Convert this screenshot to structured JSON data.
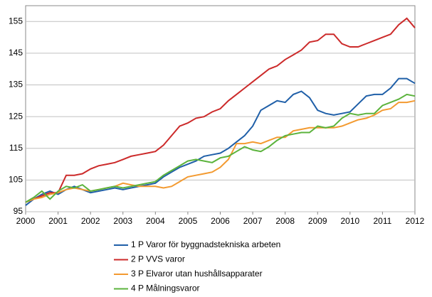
{
  "chart_data": {
    "type": "line",
    "x": [
      2000,
      2000.25,
      2000.5,
      2000.75,
      2001,
      2001.25,
      2001.5,
      2001.75,
      2002,
      2002.25,
      2002.5,
      2002.75,
      2003,
      2003.25,
      2003.5,
      2003.75,
      2004,
      2004.25,
      2004.5,
      2004.75,
      2005,
      2005.25,
      2005.5,
      2005.75,
      2006,
      2006.25,
      2006.5,
      2006.75,
      2007,
      2007.25,
      2007.5,
      2007.75,
      2008,
      2008.25,
      2008.5,
      2008.75,
      2009,
      2009.25,
      2009.5,
      2009.75,
      2010,
      2010.25,
      2010.5,
      2010.75,
      2011,
      2011.25,
      2011.5,
      2011.75,
      2012
    ],
    "series": [
      {
        "name": "1 P Varor för byggnadstekniska arbeten",
        "color": "#1f5fa8",
        "values": [
          97,
          99,
          100.5,
          101.5,
          100.5,
          102,
          103,
          102,
          101,
          101.5,
          102,
          102.5,
          102,
          102.5,
          103,
          103.5,
          104,
          106,
          107.5,
          109,
          110,
          111,
          112.5,
          113,
          113.5,
          115,
          117,
          119,
          122,
          127,
          128.5,
          130,
          129.5,
          132,
          133,
          131,
          127,
          126,
          125.5,
          126,
          126.5,
          129,
          131.5,
          132,
          132,
          134,
          137,
          137,
          135.5
        ]
      },
      {
        "name": "2 P VVS varor",
        "color": "#cc2a2a",
        "values": [
          98,
          99,
          100,
          101,
          101,
          106.5,
          106.5,
          107,
          108.5,
          109.5,
          110,
          110.5,
          111.5,
          112.5,
          113,
          113.5,
          114,
          116,
          119,
          122,
          123,
          124.5,
          125,
          126.5,
          127.5,
          130,
          132,
          134,
          136,
          138,
          140,
          141,
          143,
          144.5,
          146,
          148.5,
          149,
          151,
          151,
          148,
          147,
          147,
          148,
          149,
          150,
          151,
          154,
          156,
          153
        ]
      },
      {
        "name": "3 P Elvaror utan hushållsapparater",
        "color": "#f39a30",
        "values": [
          98,
          99,
          99.5,
          100.5,
          101,
          102,
          102.5,
          102,
          101.5,
          102,
          102.5,
          103,
          104,
          103.5,
          103,
          103,
          103,
          102.5,
          103,
          104.5,
          106,
          106.5,
          107,
          107.5,
          109,
          111.5,
          116.5,
          116.5,
          117,
          116.5,
          117.5,
          118.5,
          118.5,
          120.5,
          121,
          121.5,
          121.5,
          121.5,
          121.5,
          122,
          123,
          124,
          124.5,
          125.5,
          127,
          127.5,
          129.5,
          129.5,
          130
        ]
      },
      {
        "name": "4 P Målningsvaror",
        "color": "#5bb33c",
        "values": [
          98,
          99.5,
          101.5,
          99,
          101.5,
          103,
          102.5,
          103.5,
          101.5,
          102,
          102.5,
          103,
          102.5,
          103,
          103.5,
          104,
          104.5,
          106.5,
          108,
          109.5,
          111,
          111.5,
          111,
          110.5,
          112,
          112.5,
          114,
          115.5,
          114.5,
          114,
          115.5,
          117.5,
          119,
          119.5,
          120,
          120,
          122,
          121.5,
          122,
          124.5,
          126,
          125.5,
          126,
          126,
          128.5,
          129.5,
          130.5,
          132,
          131.5
        ]
      }
    ],
    "xlim": [
      2000,
      2012
    ],
    "xticks": [
      2000,
      2001,
      2002,
      2003,
      2004,
      2005,
      2006,
      2007,
      2008,
      2009,
      2010,
      2011,
      2012
    ],
    "ylim": [
      95,
      160
    ],
    "yticks": [
      95,
      105,
      115,
      125,
      135,
      145,
      155
    ],
    "grid": true
  }
}
